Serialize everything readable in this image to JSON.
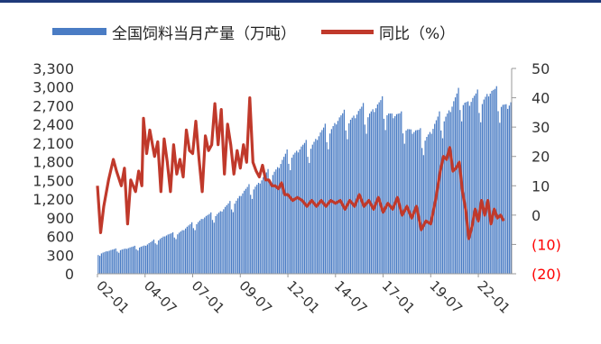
{
  "chart_data": {
    "type": "bar+line",
    "legend": {
      "bar_label": "全国饲料当月产量（万吨）",
      "line_label": "同比（%）"
    },
    "left_axis": {
      "ylim": [
        0,
        3300
      ],
      "ticks": [
        "0",
        "300",
        "600",
        "900",
        "1,200",
        "1,500",
        "1,800",
        "2,100",
        "2,400",
        "2,700",
        "3,000",
        "3,300"
      ]
    },
    "right_axis": {
      "ylim": [
        -20,
        50
      ],
      "ticks": [
        "(20)",
        "(10)",
        "0",
        "10",
        "20",
        "30",
        "40",
        "50"
      ],
      "negative_color": "#ff0000"
    },
    "x_ticks": [
      "02-01",
      "04-07",
      "07-01",
      "09-07",
      "12-01",
      "14-07",
      "17-01",
      "19-07",
      "22-01"
    ],
    "series": [
      {
        "name": "全国饲料当月产量（万吨）",
        "type": "bar",
        "color": "#4a7cc4",
        "anchors": [
          [
            "02-01",
            320
          ],
          [
            "02-07",
            360
          ],
          [
            "03-01",
            380
          ],
          [
            "03-07",
            400
          ],
          [
            "04-01",
            420
          ],
          [
            "04-07",
            450
          ],
          [
            "05-01",
            520
          ],
          [
            "05-07",
            600
          ],
          [
            "06-01",
            620
          ],
          [
            "06-07",
            700
          ],
          [
            "07-01",
            780
          ],
          [
            "07-07",
            880
          ],
          [
            "08-01",
            920
          ],
          [
            "08-07",
            1000
          ],
          [
            "09-01",
            1100
          ],
          [
            "09-07",
            1250
          ],
          [
            "10-01",
            1350
          ],
          [
            "10-07",
            1450
          ],
          [
            "11-01",
            1580
          ],
          [
            "11-07",
            1700
          ],
          [
            "12-01",
            1880
          ],
          [
            "12-07",
            1950
          ],
          [
            "13-01",
            2000
          ],
          [
            "13-07",
            2150
          ],
          [
            "14-01",
            2250
          ],
          [
            "14-07",
            2400
          ],
          [
            "15-01",
            2450
          ],
          [
            "15-07",
            2500
          ],
          [
            "16-01",
            2550
          ],
          [
            "16-07",
            2600
          ],
          [
            "17-01",
            2650
          ],
          [
            "17-07",
            2500
          ],
          [
            "18-01",
            2400
          ],
          [
            "18-07",
            2250
          ],
          [
            "19-01",
            2150
          ],
          [
            "19-07",
            2250
          ],
          [
            "20-01",
            2450
          ],
          [
            "20-07",
            2600
          ],
          [
            "21-01",
            2800
          ],
          [
            "21-07",
            2700
          ],
          [
            "22-01",
            2750
          ],
          [
            "22-07",
            2850
          ],
          [
            "23-01",
            2780
          ],
          [
            "23-07",
            2650
          ]
        ]
      },
      {
        "name": "同比（%）",
        "type": "line",
        "color": "#c0392b",
        "points": [
          [
            "02-01",
            10
          ],
          [
            "02-03",
            -6
          ],
          [
            "02-05",
            3
          ],
          [
            "02-08",
            12
          ],
          [
            "02-11",
            19
          ],
          [
            "03-01",
            15
          ],
          [
            "03-04",
            10
          ],
          [
            "03-06",
            16
          ],
          [
            "03-08",
            -3
          ],
          [
            "03-10",
            12
          ],
          [
            "04-01",
            8
          ],
          [
            "04-03",
            15
          ],
          [
            "04-05",
            10
          ],
          [
            "04-06",
            33
          ],
          [
            "04-08",
            21
          ],
          [
            "04-10",
            29
          ],
          [
            "05-01",
            20
          ],
          [
            "05-03",
            25
          ],
          [
            "05-05",
            8
          ],
          [
            "05-07",
            26
          ],
          [
            "05-09",
            18
          ],
          [
            "05-11",
            8
          ],
          [
            "06-01",
            24
          ],
          [
            "06-03",
            14
          ],
          [
            "06-05",
            19
          ],
          [
            "06-07",
            13
          ],
          [
            "06-09",
            29
          ],
          [
            "06-11",
            22
          ],
          [
            "07-01",
            21
          ],
          [
            "07-03",
            32
          ],
          [
            "07-05",
            19
          ],
          [
            "07-07",
            8
          ],
          [
            "07-09",
            27
          ],
          [
            "07-11",
            22
          ],
          [
            "08-01",
            24
          ],
          [
            "08-03",
            38
          ],
          [
            "08-05",
            24
          ],
          [
            "08-07",
            36
          ],
          [
            "08-09",
            14
          ],
          [
            "08-11",
            31
          ],
          [
            "09-01",
            24
          ],
          [
            "09-03",
            14
          ],
          [
            "09-05",
            22
          ],
          [
            "09-07",
            16
          ],
          [
            "09-09",
            24
          ],
          [
            "09-11",
            18
          ],
          [
            "10-01",
            40
          ],
          [
            "10-03",
            18
          ],
          [
            "10-05",
            15
          ],
          [
            "10-07",
            13
          ],
          [
            "10-09",
            17
          ],
          [
            "10-11",
            12
          ],
          [
            "11-01",
            12
          ],
          [
            "11-03",
            10
          ],
          [
            "11-05",
            10
          ],
          [
            "11-07",
            9
          ],
          [
            "11-09",
            11
          ],
          [
            "11-11",
            7
          ],
          [
            "12-01",
            7
          ],
          [
            "12-04",
            5
          ],
          [
            "12-07",
            6
          ],
          [
            "12-10",
            5
          ],
          [
            "13-01",
            3
          ],
          [
            "13-04",
            5
          ],
          [
            "13-07",
            3
          ],
          [
            "13-10",
            5
          ],
          [
            "14-01",
            3
          ],
          [
            "14-04",
            5
          ],
          [
            "14-07",
            4
          ],
          [
            "14-10",
            5
          ],
          [
            "15-01",
            2
          ],
          [
            "15-04",
            5
          ],
          [
            "15-07",
            3
          ],
          [
            "15-10",
            7
          ],
          [
            "16-01",
            3
          ],
          [
            "16-04",
            5
          ],
          [
            "16-07",
            2
          ],
          [
            "16-10",
            6
          ],
          [
            "17-01",
            1
          ],
          [
            "17-04",
            4
          ],
          [
            "17-07",
            2
          ],
          [
            "17-10",
            6
          ],
          [
            "18-01",
            0
          ],
          [
            "18-04",
            3
          ],
          [
            "18-07",
            -1
          ],
          [
            "18-10",
            3
          ],
          [
            "19-01",
            -5
          ],
          [
            "19-04",
            -2
          ],
          [
            "19-07",
            -3
          ],
          [
            "19-10",
            5
          ],
          [
            "20-01",
            15
          ],
          [
            "20-03",
            20
          ],
          [
            "20-05",
            19
          ],
          [
            "20-07",
            23
          ],
          [
            "20-09",
            15
          ],
          [
            "20-11",
            16
          ],
          [
            "21-01",
            18
          ],
          [
            "21-03",
            8
          ],
          [
            "21-05",
            2
          ],
          [
            "21-07",
            -8
          ],
          [
            "21-09",
            -4
          ],
          [
            "21-11",
            2
          ],
          [
            "22-01",
            -2
          ],
          [
            "22-03",
            5
          ],
          [
            "22-05",
            0
          ],
          [
            "22-07",
            5
          ],
          [
            "22-09",
            -3
          ],
          [
            "22-11",
            2
          ],
          [
            "23-01",
            -1
          ],
          [
            "23-03",
            0
          ],
          [
            "23-05",
            -2
          ]
        ]
      }
    ]
  }
}
